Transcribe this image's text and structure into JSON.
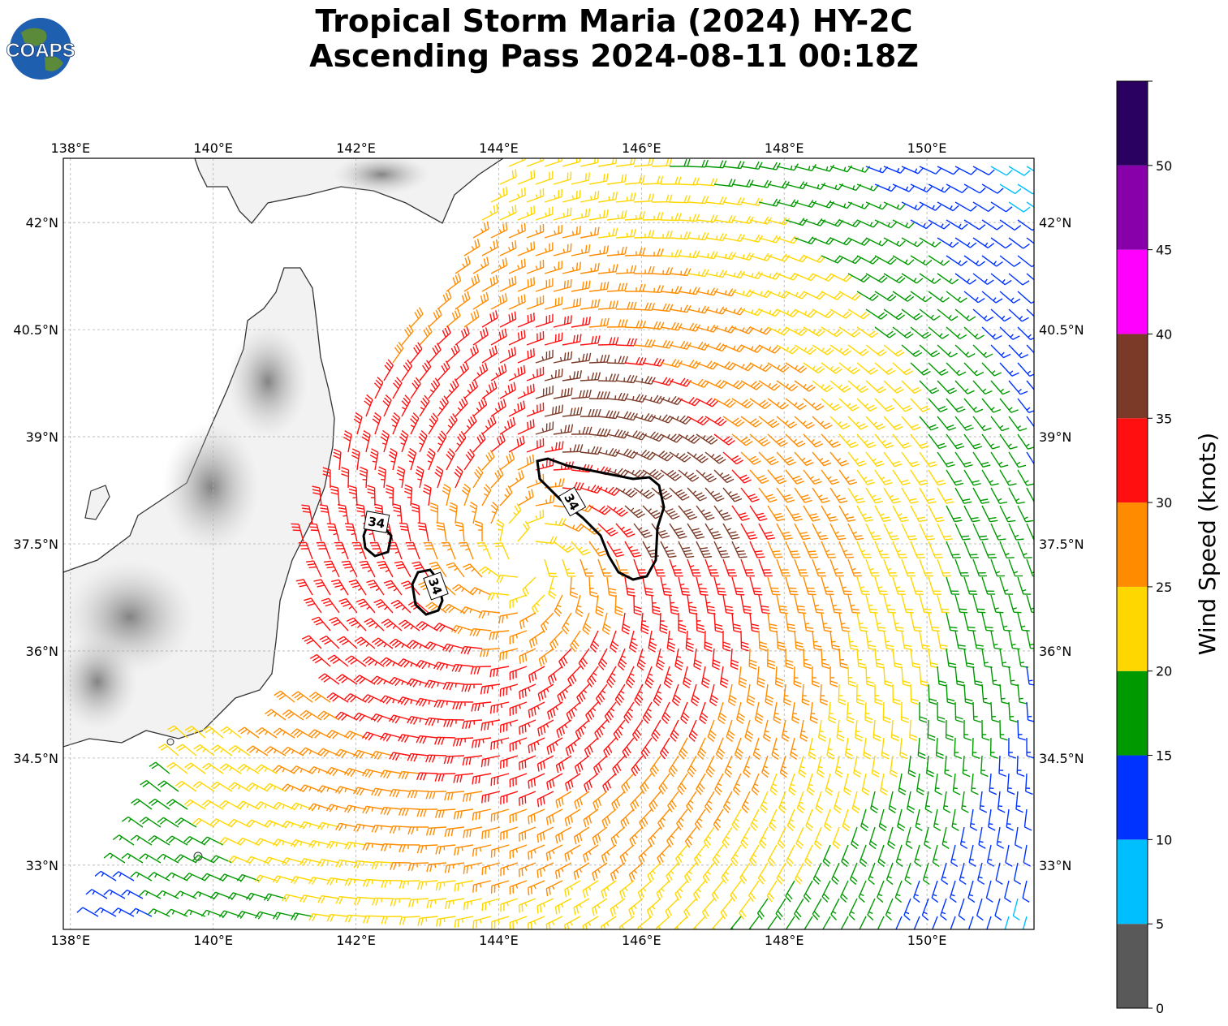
{
  "title": {
    "line1": "Tropical Storm Maria (2024) HY-2C",
    "line2": "Ascending Pass 2024-08-11 00:18Z"
  },
  "logo": {
    "text": "COAPS"
  },
  "map": {
    "lon_labels": [
      "138°E",
      "140°E",
      "142°E",
      "144°E",
      "146°E",
      "148°E",
      "150°E"
    ],
    "lon_values": [
      138,
      140,
      142,
      144,
      146,
      148,
      150
    ],
    "lat_labels": [
      "42°N",
      "40.5°N",
      "39°N",
      "37.5°N",
      "36°N",
      "34.5°N",
      "33°N"
    ],
    "lat_values": [
      42,
      40.5,
      39,
      37.5,
      36,
      34.5,
      33
    ],
    "lon_range": [
      137.9,
      151.5
    ],
    "lat_range": [
      32.1,
      42.9
    ],
    "gridlines": true,
    "storm_center": {
      "lon": 144.4,
      "lat": 37.3
    },
    "contour": {
      "label": "34",
      "level_knots": 34
    }
  },
  "colorbar": {
    "label": "Wind Speed (knots)",
    "ticks": [
      "0",
      "5",
      "10",
      "15",
      "20",
      "25",
      "30",
      "35",
      "40",
      "45",
      "50"
    ],
    "bins": [
      {
        "min": 0,
        "max": 5,
        "color": "#595959"
      },
      {
        "min": 5,
        "max": 10,
        "color": "#00bfff"
      },
      {
        "min": 10,
        "max": 15,
        "color": "#0033ff"
      },
      {
        "min": 15,
        "max": 20,
        "color": "#009900"
      },
      {
        "min": 20,
        "max": 25,
        "color": "#ffd700"
      },
      {
        "min": 25,
        "max": 30,
        "color": "#ff8c00"
      },
      {
        "min": 30,
        "max": 35,
        "color": "#ff0f0f"
      },
      {
        "min": 35,
        "max": 40,
        "color": "#7b3a28"
      },
      {
        "min": 40,
        "max": 45,
        "color": "#ff00ff"
      },
      {
        "min": 45,
        "max": 50,
        "color": "#8800aa"
      },
      {
        "min": 50,
        "max": 55,
        "color": "#2a0060"
      }
    ]
  },
  "colors": {
    "land": "#f2f2f2",
    "mountain": "#9a9a9a",
    "coast": "#333333",
    "grid": "#b0b0b0"
  }
}
